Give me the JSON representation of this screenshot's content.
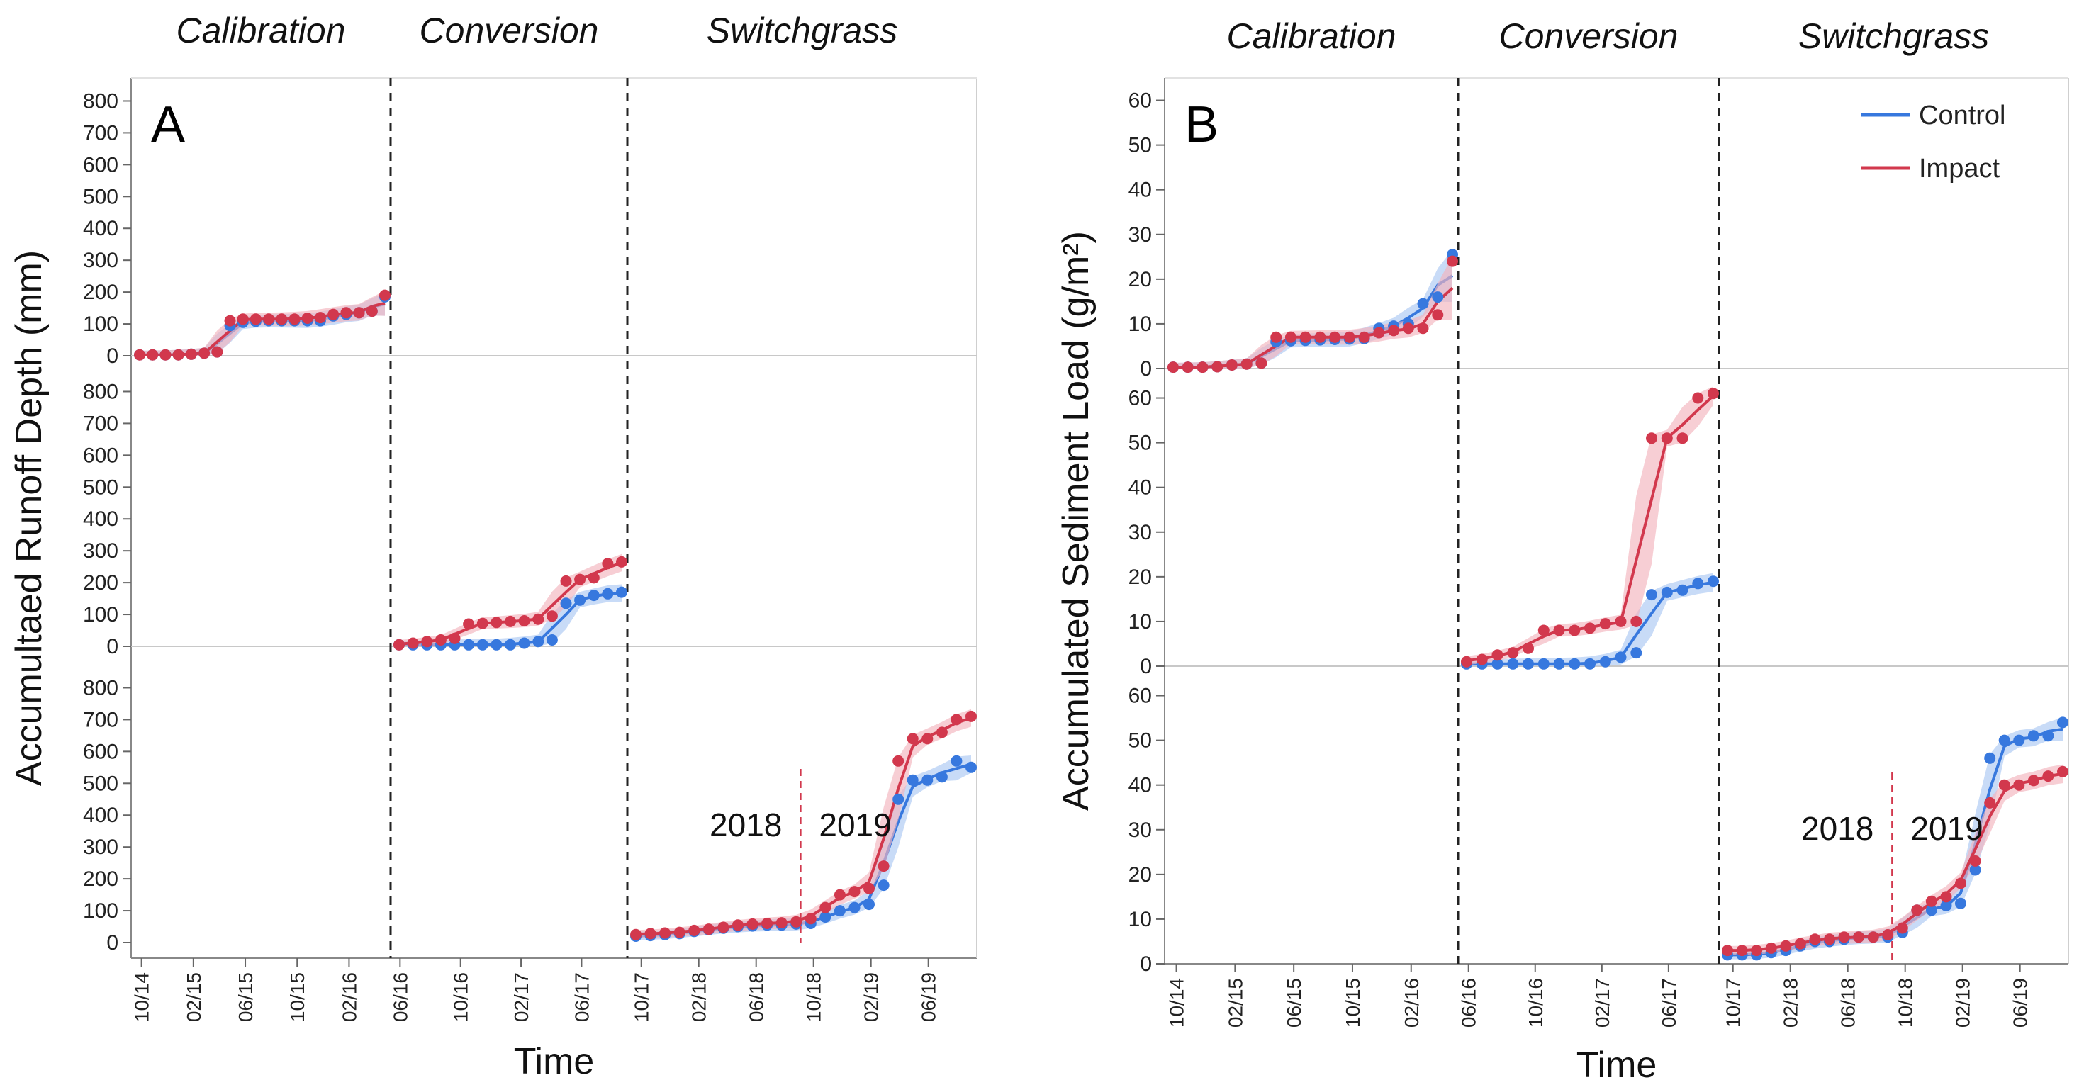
{
  "figure": {
    "phases": [
      "Calibration",
      "Conversion",
      "Switchgrass"
    ],
    "x_ticks": [
      "10/14",
      "02/15",
      "06/15",
      "10/15",
      "02/16",
      "06/16",
      "10/16",
      "02/17",
      "06/17",
      "10/17",
      "02/18",
      "06/18",
      "10/18",
      "02/19",
      "06/19"
    ],
    "year_labels": [
      "2018",
      "2019"
    ],
    "xlabel": "Time",
    "colors": {
      "control": "#3778de",
      "impact": "#d2384d",
      "control_band": "#aac8f2",
      "impact_band": "#f2b4bd"
    }
  },
  "chart_data": [
    {
      "type": "scatter",
      "panel_label": "A",
      "ylabel": "Accumultaed Runoff Depth (mm)",
      "xlabel": "Time",
      "ylim": [
        0,
        850
      ],
      "yticks": [
        0,
        100,
        200,
        300,
        400,
        500,
        600,
        700,
        800
      ],
      "facets": [
        {
          "phase": "Calibration",
          "x_range": [
            0,
            19
          ],
          "series": [
            {
              "name": "Control",
              "x": [
                0,
                1,
                2,
                3,
                4,
                5,
                6,
                7,
                8,
                9,
                10,
                11,
                12,
                13,
                14,
                15,
                16,
                17,
                18,
                19
              ],
              "values": [
                3,
                3,
                3,
                3,
                5,
                8,
                12,
                95,
                105,
                108,
                110,
                110,
                110,
                110,
                110,
                125,
                130,
                135,
                140,
                185
              ]
            },
            {
              "name": "Impact",
              "x": [
                0,
                1,
                2,
                3,
                4,
                5,
                6,
                7,
                8,
                9,
                10,
                11,
                12,
                13,
                14,
                15,
                16,
                17,
                18,
                19
              ],
              "values": [
                3,
                3,
                3,
                3,
                5,
                8,
                12,
                110,
                115,
                115,
                115,
                115,
                115,
                118,
                120,
                130,
                135,
                135,
                140,
                190
              ]
            }
          ]
        },
        {
          "phase": "Conversion",
          "x_range": [
            0,
            16
          ],
          "series": [
            {
              "name": "Control",
              "x": [
                0,
                1,
                2,
                3,
                4,
                5,
                6,
                7,
                8,
                9,
                10,
                11,
                12,
                13,
                14,
                15,
                16
              ],
              "values": [
                5,
                5,
                5,
                5,
                5,
                5,
                5,
                5,
                5,
                10,
                15,
                20,
                135,
                145,
                160,
                165,
                170
              ]
            },
            {
              "name": "Impact",
              "x": [
                0,
                1,
                2,
                3,
                4,
                5,
                6,
                7,
                8,
                9,
                10,
                11,
                12,
                13,
                14,
                15,
                16
              ],
              "values": [
                5,
                10,
                15,
                20,
                25,
                70,
                72,
                75,
                78,
                80,
                85,
                95,
                205,
                210,
                215,
                260,
                265
              ]
            }
          ]
        },
        {
          "phase": "Switchgrass",
          "x_range": [
            0,
            23
          ],
          "series": [
            {
              "name": "Control",
              "x": [
                0,
                1,
                2,
                3,
                4,
                5,
                6,
                7,
                8,
                9,
                10,
                11,
                12,
                13,
                14,
                15,
                16,
                17,
                18,
                19,
                20,
                21,
                22,
                23
              ],
              "values": [
                20,
                22,
                25,
                28,
                35,
                40,
                45,
                50,
                52,
                55,
                55,
                58,
                60,
                80,
                100,
                110,
                120,
                180,
                450,
                510,
                510,
                520,
                570,
                550
              ]
            },
            {
              "name": "Impact",
              "x": [
                0,
                1,
                2,
                3,
                4,
                5,
                6,
                7,
                8,
                9,
                10,
                11,
                12,
                13,
                14,
                15,
                16,
                17,
                18,
                19,
                20,
                21,
                22,
                23
              ],
              "values": [
                25,
                28,
                30,
                32,
                38,
                42,
                48,
                55,
                58,
                60,
                62,
                65,
                75,
                110,
                150,
                160,
                170,
                240,
                570,
                640,
                640,
                660,
                700,
                710
              ]
            }
          ]
        }
      ]
    },
    {
      "type": "scatter",
      "panel_label": "B",
      "ylabel": "Accumulated Sediment Load  (g/m²)",
      "xlabel": "Time",
      "ylim": [
        0,
        65
      ],
      "yticks": [
        0,
        10,
        20,
        30,
        40,
        50,
        60
      ],
      "legend": [
        {
          "name": "Control",
          "label": "Control"
        },
        {
          "name": "Impact",
          "label": "Impact"
        }
      ],
      "facets": [
        {
          "phase": "Calibration",
          "x_range": [
            0,
            19
          ],
          "series": [
            {
              "name": "Control",
              "x": [
                0,
                1,
                2,
                3,
                4,
                5,
                6,
                7,
                8,
                9,
                10,
                11,
                12,
                13,
                14,
                15,
                16,
                17,
                18,
                19
              ],
              "values": [
                0.3,
                0.3,
                0.3,
                0.4,
                0.8,
                1,
                1.2,
                6,
                6.2,
                6.3,
                6.4,
                6.5,
                6.6,
                6.7,
                9,
                9.5,
                10,
                14.5,
                16,
                25.5
              ]
            },
            {
              "name": "Impact",
              "x": [
                0,
                1,
                2,
                3,
                4,
                5,
                6,
                7,
                8,
                9,
                10,
                11,
                12,
                13,
                14,
                15,
                16,
                17,
                18,
                19
              ],
              "values": [
                0.3,
                0.3,
                0.3,
                0.4,
                0.8,
                1,
                1.2,
                7,
                7,
                7,
                7,
                7,
                7,
                7,
                8,
                8.5,
                9,
                9,
                12,
                24
              ]
            }
          ]
        },
        {
          "phase": "Conversion",
          "x_range": [
            0,
            16
          ],
          "series": [
            {
              "name": "Control",
              "x": [
                0,
                1,
                2,
                3,
                4,
                5,
                6,
                7,
                8,
                9,
                10,
                11,
                12,
                13,
                14,
                15,
                16
              ],
              "values": [
                0.5,
                0.5,
                0.5,
                0.5,
                0.5,
                0.5,
                0.5,
                0.5,
                0.5,
                1,
                2,
                3,
                16,
                16.5,
                17,
                18.5,
                19
              ]
            },
            {
              "name": "Impact",
              "x": [
                0,
                1,
                2,
                3,
                4,
                5,
                6,
                7,
                8,
                9,
                10,
                11,
                12,
                13,
                14,
                15,
                16
              ],
              "values": [
                1,
                1.5,
                2.5,
                3,
                4,
                8,
                8,
                8,
                8.5,
                9.5,
                10,
                10,
                51,
                51,
                51,
                60,
                61
              ]
            }
          ]
        },
        {
          "phase": "Switchgrass",
          "x_range": [
            0,
            23
          ],
          "series": [
            {
              "name": "Control",
              "x": [
                0,
                1,
                2,
                3,
                4,
                5,
                6,
                7,
                8,
                9,
                10,
                11,
                12,
                13,
                14,
                15,
                16,
                17,
                18,
                19,
                20,
                21,
                22,
                23
              ],
              "values": [
                2,
                2,
                2,
                2.5,
                3,
                4,
                5,
                5,
                5.5,
                6,
                6,
                6,
                7,
                12,
                12,
                13,
                13.5,
                21,
                46,
                50,
                50,
                51,
                51,
                54
              ]
            },
            {
              "name": "Impact",
              "x": [
                0,
                1,
                2,
                3,
                4,
                5,
                6,
                7,
                8,
                9,
                10,
                11,
                12,
                13,
                14,
                15,
                16,
                17,
                18,
                19,
                20,
                21,
                22,
                23
              ],
              "values": [
                3,
                3,
                3,
                3.5,
                4,
                4.5,
                5.5,
                5.5,
                6,
                6,
                6,
                6.5,
                8,
                12,
                14,
                15,
                18,
                23,
                36,
                40,
                40,
                41,
                42,
                43
              ]
            }
          ]
        }
      ]
    }
  ]
}
